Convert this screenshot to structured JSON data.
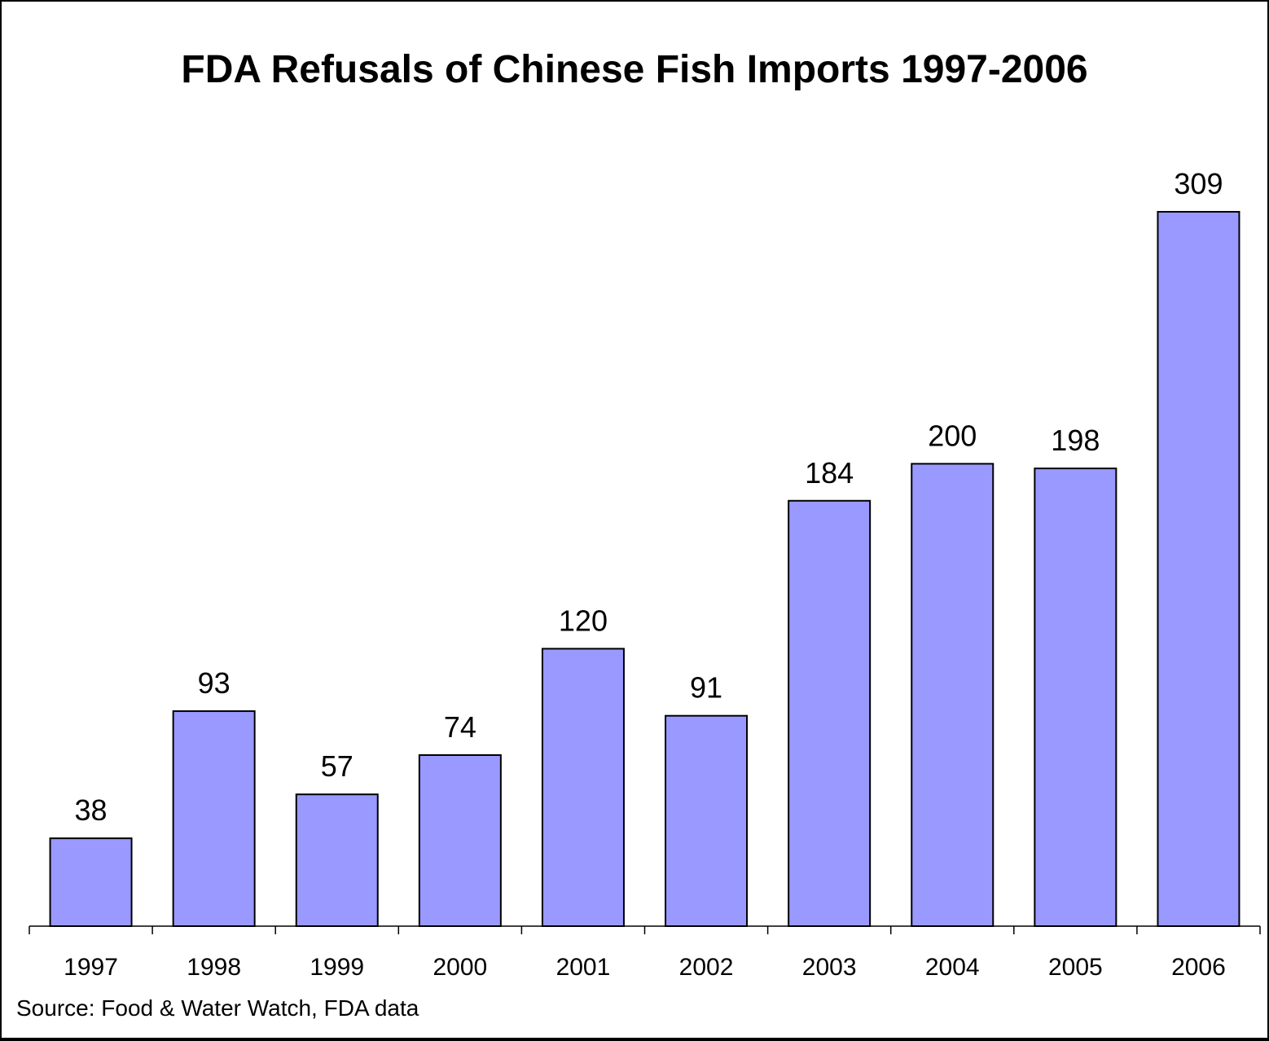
{
  "chart_data": {
    "type": "bar",
    "title": "FDA Refusals of Chinese Fish Imports 1997-2006",
    "xlabel": "",
    "ylabel": "",
    "categories": [
      "1997",
      "1998",
      "1999",
      "2000",
      "2001",
      "2002",
      "2003",
      "2004",
      "2005",
      "2006"
    ],
    "values": [
      38,
      93,
      57,
      74,
      120,
      91,
      184,
      200,
      198,
      309
    ],
    "ylim": [
      0,
      350
    ],
    "grid": false,
    "legend": "none",
    "data_labels": true,
    "bar_color": "#9999ff",
    "bar_edge_color": "#000000",
    "source": "Source: Food & Water Watch, FDA data"
  }
}
